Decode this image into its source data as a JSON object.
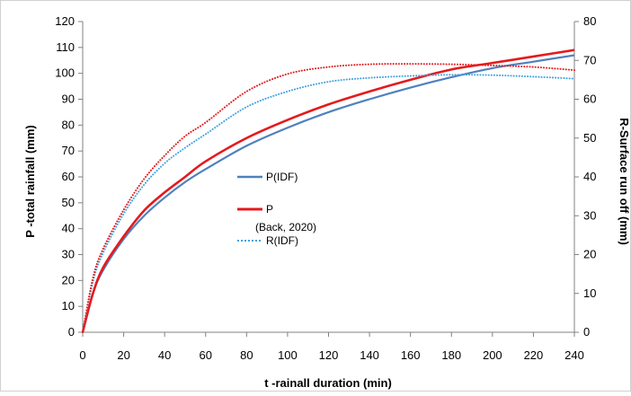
{
  "chart_data": {
    "type": "line",
    "title": "",
    "xlabel": "t -rainall duration  (min)",
    "ylabel_left": "P -total rainfall (mm)",
    "ylabel_right": "R-Surface run off (mm)",
    "xlim": [
      0,
      240
    ],
    "ylim_left": [
      0,
      120
    ],
    "ylim_right": [
      0,
      80
    ],
    "x_ticks": [
      0,
      20,
      40,
      60,
      80,
      100,
      120,
      140,
      160,
      180,
      200,
      220,
      240
    ],
    "y_left_ticks": [
      0,
      10,
      20,
      30,
      40,
      50,
      60,
      70,
      80,
      90,
      100,
      110,
      120
    ],
    "y_right_ticks": [
      0,
      10,
      20,
      30,
      40,
      50,
      60,
      70,
      80
    ],
    "grid": false,
    "legend_placement": "center",
    "legend": [
      {
        "label": "P(IDF)",
        "color": "#4F81BD",
        "style": "solid"
      },
      {
        "label": "P",
        "sublabel": "(Back, 2020)",
        "color": "#E41A1C",
        "style": "solid"
      },
      {
        "label": "R(IDF)",
        "color": "#3FA2DD",
        "style": "dotted"
      }
    ],
    "series": [
      {
        "name": "P(IDF)",
        "axis": "left",
        "color": "#4F81BD",
        "style": "solid",
        "x": [
          0,
          5,
          10,
          20,
          30,
          40,
          50,
          60,
          80,
          100,
          120,
          140,
          160,
          180,
          200,
          220,
          240
        ],
        "y": [
          0,
          15,
          24,
          36,
          45,
          52,
          58,
          63,
          72,
          79,
          85,
          90,
          94.5,
          98.5,
          102,
          104.5,
          107
        ]
      },
      {
        "name": "P",
        "axis": "left",
        "color": "#E41A1C",
        "style": "solid",
        "x": [
          0,
          5,
          10,
          20,
          30,
          40,
          50,
          60,
          80,
          100,
          120,
          140,
          160,
          180,
          200,
          220,
          240
        ],
        "y": [
          0,
          15,
          25,
          37,
          47,
          54,
          60,
          66,
          75,
          82,
          88,
          93,
          97.5,
          101.5,
          104,
          106.5,
          109
        ]
      },
      {
        "name": "R(IDF)",
        "axis": "right",
        "color": "#3FA2DD",
        "style": "dotted",
        "x": [
          0,
          5,
          10,
          20,
          30,
          40,
          50,
          60,
          80,
          100,
          120,
          140,
          160,
          180,
          200,
          220,
          240
        ],
        "y": [
          0,
          13,
          20.5,
          30.5,
          38,
          43.5,
          47.5,
          51,
          58,
          62,
          64.5,
          65.5,
          66,
          66.3,
          66.2,
          65.8,
          65.3
        ]
      },
      {
        "name": "",
        "axis": "right",
        "color": "#E41A1C",
        "style": "dotted",
        "x": [
          0,
          5,
          10,
          20,
          30,
          40,
          50,
          60,
          80,
          100,
          120,
          140,
          160,
          180,
          200,
          220,
          240
        ],
        "y": [
          0,
          14,
          21.5,
          31.5,
          39.5,
          45.5,
          50.5,
          54,
          62,
          66.5,
          68.3,
          69,
          69.1,
          69,
          68.7,
          68.3,
          67.5
        ]
      }
    ]
  }
}
